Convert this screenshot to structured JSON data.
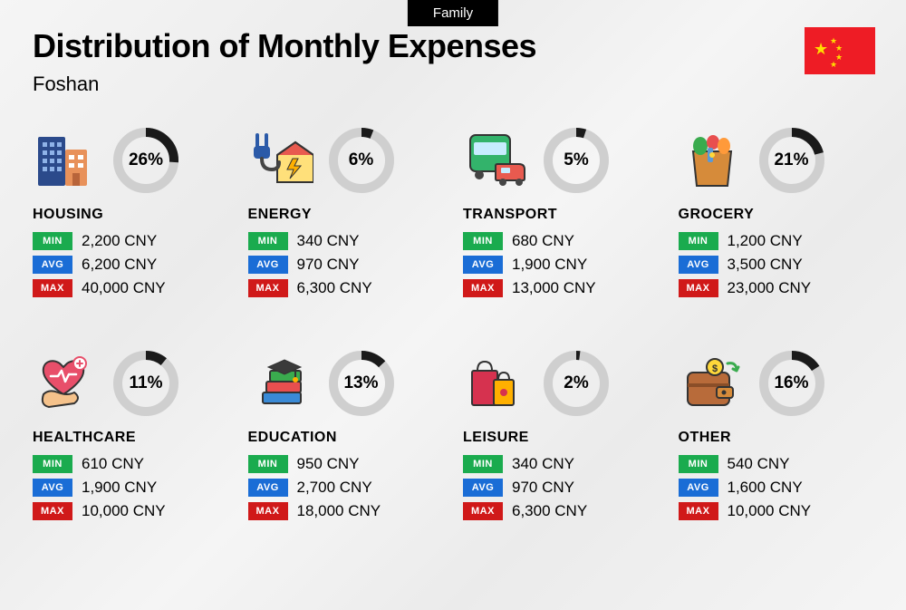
{
  "tag": "Family",
  "title": "Distribution of Monthly Expenses",
  "subtitle": "Foshan",
  "currency": "CNY",
  "labels": {
    "min": "MIN",
    "avg": "AVG",
    "max": "MAX"
  },
  "colors": {
    "min_badge": "#1aab4e",
    "avg_badge": "#1a6dd6",
    "max_badge": "#d01919",
    "donut_fg": "#1a1a1a",
    "donut_bg": "#cfcfcf",
    "flag_bg": "#ee1c25",
    "flag_star": "#ffde00"
  },
  "donut": {
    "radius": 31,
    "stroke_width": 10
  },
  "categories": [
    {
      "key": "housing",
      "name": "HOUSING",
      "pct": 26,
      "min": "2,200",
      "avg": "6,200",
      "max": "40,000",
      "icon": "buildings"
    },
    {
      "key": "energy",
      "name": "ENERGY",
      "pct": 6,
      "min": "340",
      "avg": "970",
      "max": "6,300",
      "icon": "energy-house"
    },
    {
      "key": "transport",
      "name": "TRANSPORT",
      "pct": 5,
      "min": "680",
      "avg": "1,900",
      "max": "13,000",
      "icon": "bus-car"
    },
    {
      "key": "grocery",
      "name": "GROCERY",
      "pct": 21,
      "min": "1,200",
      "avg": "3,500",
      "max": "23,000",
      "icon": "grocery-bag"
    },
    {
      "key": "healthcare",
      "name": "HEALTHCARE",
      "pct": 11,
      "min": "610",
      "avg": "1,900",
      "max": "10,000",
      "icon": "heart-hand"
    },
    {
      "key": "education",
      "name": "EDUCATION",
      "pct": 13,
      "min": "950",
      "avg": "2,700",
      "max": "18,000",
      "icon": "grad-books"
    },
    {
      "key": "leisure",
      "name": "LEISURE",
      "pct": 2,
      "min": "340",
      "avg": "970",
      "max": "6,300",
      "icon": "shopping-bags"
    },
    {
      "key": "other",
      "name": "OTHER",
      "pct": 16,
      "min": "540",
      "avg": "1,600",
      "max": "10,000",
      "icon": "wallet"
    }
  ]
}
